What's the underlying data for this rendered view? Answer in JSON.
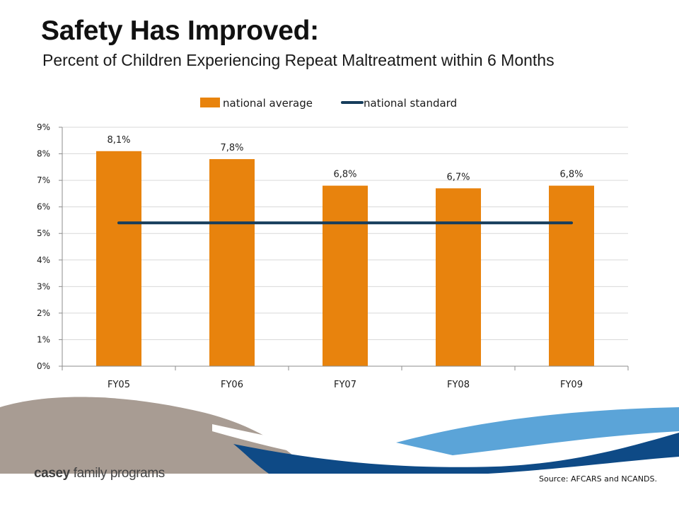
{
  "slide": {
    "title": "Safety Has Improved:",
    "subtitle": "Percent of Children Experiencing Repeat Maltreatment within 6 Months",
    "source": "Source: AFCARS and NCANDS.",
    "logo": {
      "bold": "casey",
      "rest": " family programs"
    }
  },
  "chart_data": {
    "type": "bar",
    "title": "",
    "xlabel": "",
    "ylabel": "",
    "categories": [
      "FY05",
      "FY06",
      "FY07",
      "FY08",
      "FY09"
    ],
    "series": [
      {
        "name": "national average",
        "type": "bar",
        "values": [
          8.1,
          7.8,
          6.8,
          6.7,
          6.8
        ],
        "labels": [
          "8,1%",
          "7,8%",
          "6,8%",
          "6,7%",
          "6,8%"
        ],
        "color": "#E8830D"
      },
      {
        "name": "national standard",
        "type": "line",
        "values": [
          5.4,
          5.4,
          5.4,
          5.4,
          5.4
        ],
        "color": "#163D5C"
      }
    ],
    "ylim": [
      0,
      9
    ],
    "yticks": [
      "0%",
      "1%",
      "2%",
      "3%",
      "4%",
      "5%",
      "6%",
      "7%",
      "8%",
      "9%"
    ],
    "grid": true,
    "legend": "top-center"
  },
  "colors": {
    "wave_gray": "#A89C93",
    "wave_blue": "#0E4A86",
    "wave_light_blue": "#5BA4D8"
  }
}
